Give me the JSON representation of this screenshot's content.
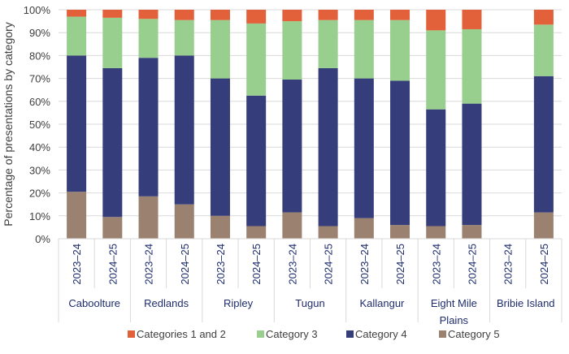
{
  "chart_data": {
    "type": "bar",
    "stacked": true,
    "ylabel": "Percentage of presentations by category",
    "ylim": [
      0,
      100
    ],
    "yticks": [
      "0%",
      "10%",
      "20%",
      "30%",
      "40%",
      "50%",
      "60%",
      "70%",
      "80%",
      "90%",
      "100%"
    ],
    "grid": true,
    "legend_placement": "bottom",
    "groups": [
      {
        "name": "Caboolture",
        "lines": [
          "Caboolture"
        ],
        "periods": [
          "2023–24",
          "2024–25"
        ]
      },
      {
        "name": "Redlands",
        "lines": [
          "Redlands"
        ],
        "periods": [
          "2023–24",
          "2024–25"
        ]
      },
      {
        "name": "Ripley",
        "lines": [
          "Ripley"
        ],
        "periods": [
          "2023–24",
          "2024–25"
        ]
      },
      {
        "name": "Tugun",
        "lines": [
          "Tugun"
        ],
        "periods": [
          "2023–24",
          "2024–25"
        ]
      },
      {
        "name": "Kallangur",
        "lines": [
          "Kallangur"
        ],
        "periods": [
          "2023–24",
          "2024–25"
        ]
      },
      {
        "name": "Eight Mile Plains",
        "lines": [
          "Eight Mile",
          "Plains"
        ],
        "periods": [
          "2023–24",
          "2024–25"
        ]
      },
      {
        "name": "Bribie Island",
        "lines": [
          "Bribie Island"
        ],
        "periods": [
          "2023–24",
          "2024–25"
        ]
      }
    ],
    "series": [
      {
        "name": "Category 5",
        "color": "#9a8170",
        "values": [
          20.5,
          9.5,
          18.5,
          15,
          10,
          5.5,
          11.5,
          5.5,
          9,
          6,
          5.5,
          6,
          null,
          11.5
        ]
      },
      {
        "name": "Category 4",
        "color": "#353d7b",
        "values": [
          59.5,
          65,
          60.5,
          65,
          60,
          57,
          58,
          69,
          61,
          63,
          51,
          53,
          null,
          59.5
        ]
      },
      {
        "name": "Category 3",
        "color": "#98cf8e",
        "values": [
          17,
          22,
          17,
          15.5,
          25.5,
          31.5,
          25.5,
          21,
          25.5,
          26.5,
          34.5,
          32.5,
          null,
          22.5
        ]
      },
      {
        "name": "Categories 1 and 2",
        "color": "#e2603a",
        "values": [
          3,
          3.5,
          4,
          4.5,
          4.5,
          6,
          5,
          4.5,
          4.5,
          4.5,
          9,
          8.5,
          null,
          6.5
        ]
      }
    ],
    "legend_order": [
      "Categories 1 and 2",
      "Category 3",
      "Category 4",
      "Category 5"
    ]
  }
}
